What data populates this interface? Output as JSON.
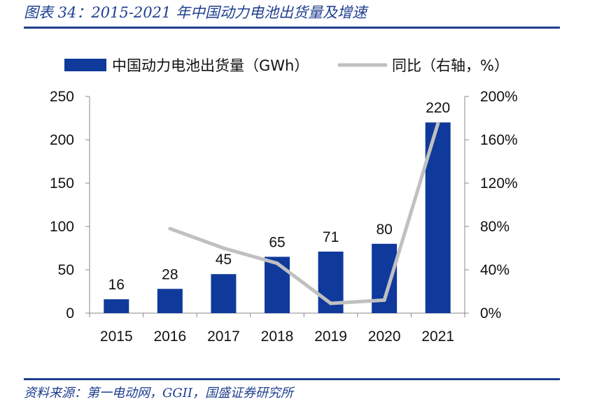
{
  "figure": {
    "title": "图表 34：2015-2021 年中国动力电池出货量及增速",
    "source": "资料来源：第一电动网，GGII，国盛证券研究所"
  },
  "chart_data": {
    "type": "bar",
    "categories": [
      "2015",
      "2016",
      "2017",
      "2018",
      "2019",
      "2020",
      "2021"
    ],
    "series": [
      {
        "name": "中国动力电池出货量（GWh）",
        "type": "bar",
        "axis": "left",
        "color": "#0f3a9b",
        "values": [
          16,
          28,
          45,
          65,
          71,
          80,
          220
        ],
        "labels": [
          "16",
          "28",
          "45",
          "65",
          "71",
          "80",
          "220"
        ]
      },
      {
        "name": "同比（右轴，%）",
        "type": "line",
        "axis": "right",
        "color": "#c0c0c0",
        "values": [
          null,
          78,
          60,
          46,
          9,
          12,
          175
        ]
      }
    ],
    "y_left": {
      "ylim": [
        0,
        250
      ],
      "ticks": [
        "0",
        "50",
        "100",
        "150",
        "200",
        "250"
      ]
    },
    "y_right": {
      "ylim": [
        0,
        200
      ],
      "ticks": [
        "0%",
        "40%",
        "80%",
        "120%",
        "160%",
        "200%"
      ]
    },
    "grid": false,
    "legend_position": "top"
  }
}
